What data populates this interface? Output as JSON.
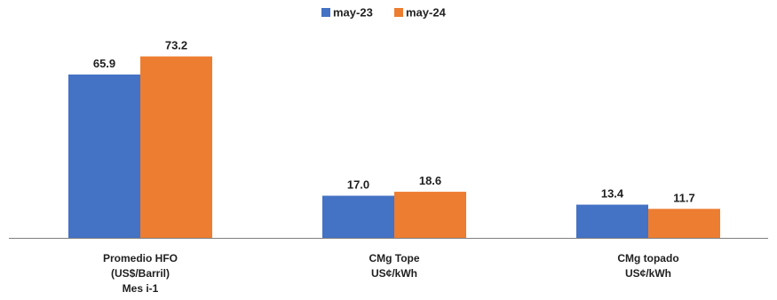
{
  "chart_data": {
    "type": "bar",
    "categories": [
      [
        "Promedio HFO",
        "(US$/Barril)",
        "Mes i-1"
      ],
      [
        "CMg Tope",
        "US¢/kWh"
      ],
      [
        "CMg topado",
        "US¢/kWh"
      ]
    ],
    "series": [
      {
        "name": "may-23",
        "color": "#4472C4",
        "values": [
          65.9,
          17.0,
          13.4
        ],
        "labels": [
          "65.9",
          "17.0",
          "13.4"
        ]
      },
      {
        "name": "may-24",
        "color": "#ED7D31",
        "values": [
          73.2,
          18.6,
          11.7
        ],
        "labels": [
          "73.2",
          "18.6",
          "11.7"
        ]
      }
    ],
    "title": "",
    "xlabel": "",
    "ylabel": "",
    "ylim": [
      0,
      84.5
    ],
    "grid": false,
    "legend_position": "top-center"
  }
}
